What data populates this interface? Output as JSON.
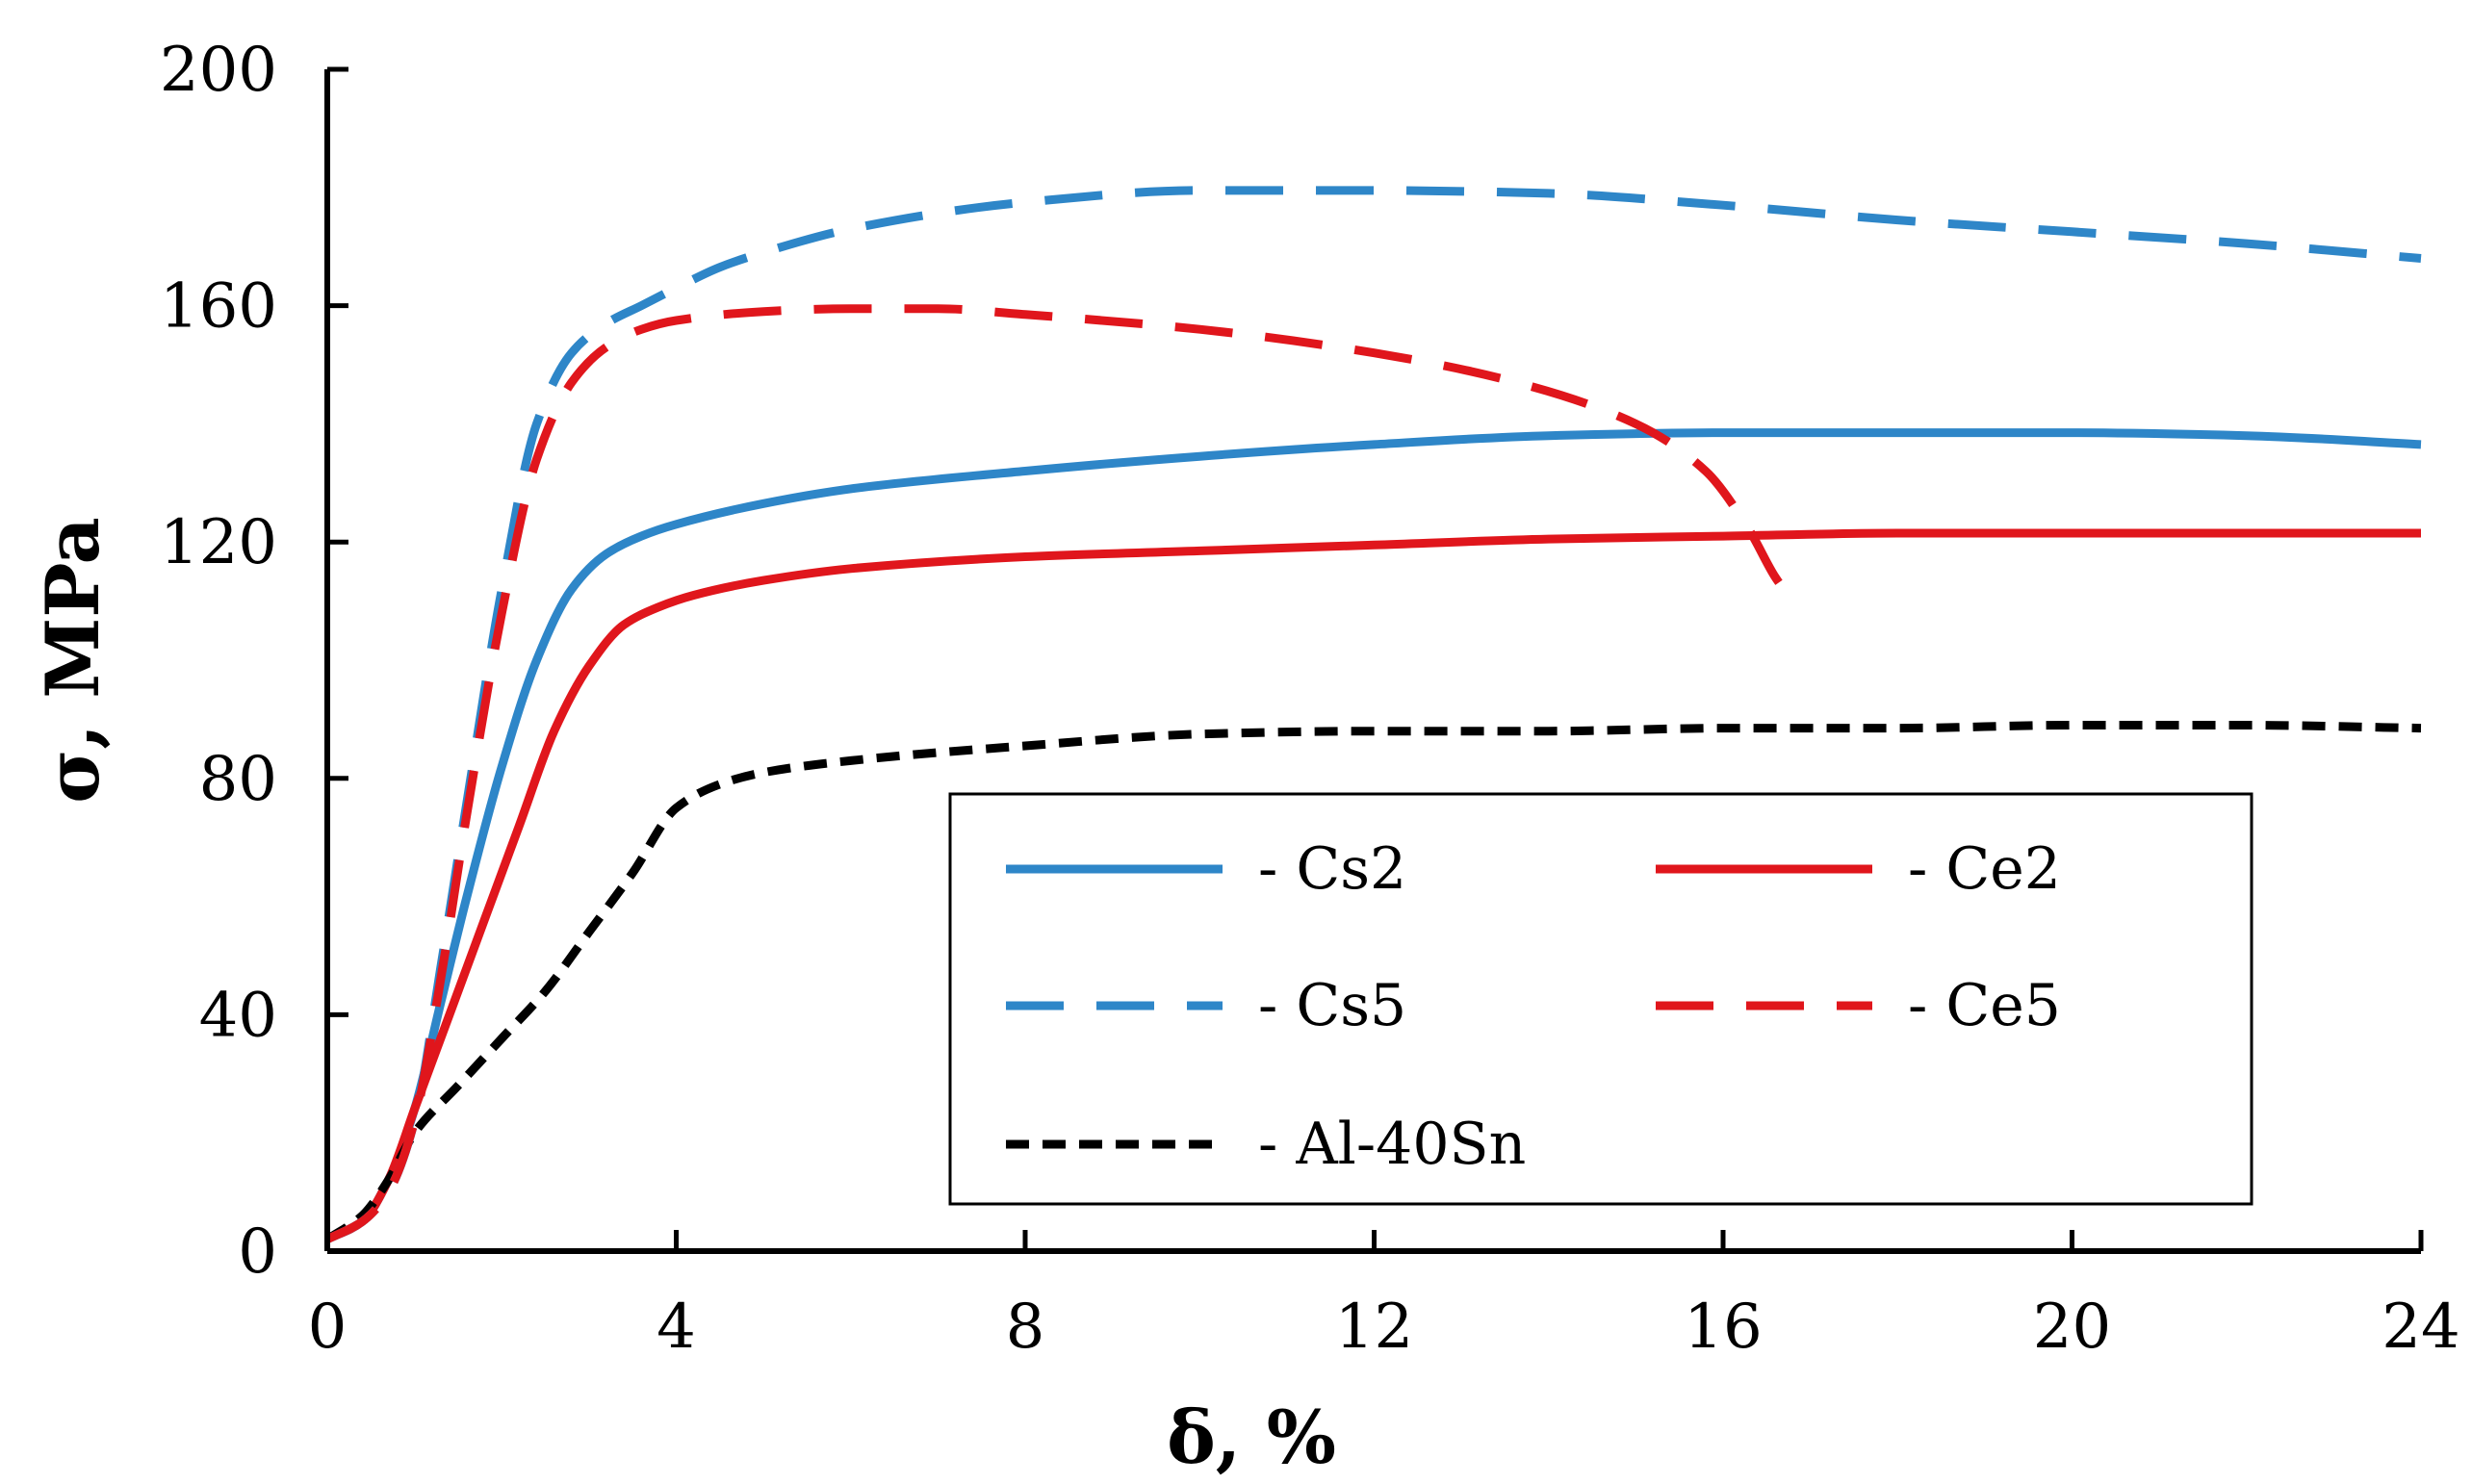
{
  "chart_data": {
    "type": "line",
    "title": "",
    "xlabel": "δ, %",
    "ylabel": "σ, MPa",
    "xlim": [
      0,
      24
    ],
    "ylim": [
      0,
      200
    ],
    "xticks": [
      0,
      4,
      8,
      12,
      16,
      20,
      24
    ],
    "yticks": [
      0,
      40,
      80,
      120,
      160,
      200
    ],
    "grid": false,
    "legend_position": "bottom-right",
    "series": [
      {
        "name": "Cs2",
        "legend_label": "- Cs2",
        "color": "#2E86C8",
        "style": "solid",
        "x": [
          0,
          0.4,
          0.7,
          1.0,
          1.3,
          1.6,
          2.0,
          2.4,
          2.8,
          3.2,
          3.6,
          4.0,
          5,
          6,
          8,
          10,
          12,
          14,
          16,
          18,
          20,
          22,
          24
        ],
        "y": [
          2,
          5,
          12,
          24,
          42,
          60,
          82,
          100,
          112,
          118,
          121,
          123,
          126.5,
          129,
          132,
          134.5,
          136.5,
          138,
          138.5,
          138.5,
          138.5,
          138,
          136.5
        ]
      },
      {
        "name": "Ce2",
        "legend_label": "- Ce2",
        "color": "#E0161C",
        "style": "solid",
        "x": [
          0,
          0.4,
          0.7,
          1.0,
          1.4,
          1.8,
          2.2,
          2.6,
          3.0,
          3.4,
          3.8,
          4.2,
          5,
          6,
          8,
          10,
          12,
          14,
          16,
          18,
          20,
          22,
          24
        ],
        "y": [
          2,
          5,
          12,
          24,
          40,
          56,
          72,
          88,
          99,
          106,
          109,
          111,
          113.5,
          115.5,
          117.5,
          118.5,
          119.5,
          120.5,
          121,
          121.5,
          121.5,
          121.5,
          121.5
        ]
      },
      {
        "name": "Cs5",
        "legend_label": "- Cs5",
        "color": "#2E86C8",
        "style": "dashed",
        "x": [
          0,
          0.4,
          0.7,
          1.0,
          1.3,
          1.6,
          2.0,
          2.4,
          2.8,
          3.2,
          3.6,
          4.0,
          4.5,
          5,
          6,
          8,
          10,
          12,
          14,
          16,
          18,
          20,
          22,
          24
        ],
        "y": [
          2,
          5,
          10,
          22,
          48,
          76,
          112,
          140,
          152,
          157,
          160,
          163,
          166.5,
          169,
          173,
          177.5,
          179.5,
          179.5,
          179,
          177,
          174.5,
          172.5,
          170.5,
          168
        ]
      },
      {
        "name": "Ce5",
        "legend_label": "- Ce5",
        "color": "#E0161C",
        "style": "dashed",
        "x": [
          0,
          0.4,
          0.7,
          1.0,
          1.3,
          1.6,
          2.0,
          2.4,
          2.8,
          3.2,
          3.6,
          4.0,
          5,
          6,
          7,
          8,
          10,
          12,
          13.5,
          15,
          15.8,
          16.3,
          16.6,
          16.8
        ],
        "y": [
          2,
          5,
          10,
          22,
          46,
          74,
          108,
          134,
          147,
          153,
          156,
          157.5,
          159,
          159.5,
          159.5,
          158.5,
          156,
          152,
          147.5,
          140,
          132,
          122,
          114,
          110
        ]
      },
      {
        "name": "Al-40Sn",
        "legend_label": "- Al-40Sn",
        "color": "#000000",
        "style": "dotted",
        "x": [
          0,
          0.4,
          0.7,
          1.0,
          1.5,
          2.0,
          2.5,
          3.0,
          3.5,
          4.0,
          4.5,
          5,
          6,
          8,
          10,
          12,
          14,
          16,
          18,
          20,
          22,
          24
        ],
        "y": [
          2,
          6,
          12,
          20,
          28,
          36,
          44,
          54,
          64,
          75,
          79,
          81,
          83,
          85.5,
          87.5,
          88,
          88,
          88.5,
          88.5,
          89,
          89,
          88.5
        ]
      }
    ]
  }
}
